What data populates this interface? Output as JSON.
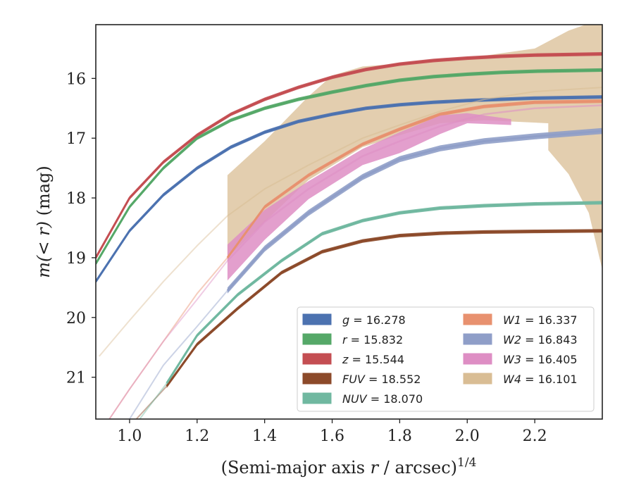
{
  "chart_data": {
    "type": "line",
    "xlabel": "(Semi-major axis r / arcsec)^1/4",
    "xlabel_parts": {
      "prefix": "(Semi-major axis ",
      "var": "r",
      "middle": " / arcsec)",
      "sup": "1/4"
    },
    "ylabel": "m(< r) (mag)",
    "ylabel_parts": {
      "math": "m(< r)",
      "unit": " (mag)"
    },
    "xlim": [
      0.9,
      2.4
    ],
    "ylim": [
      21.7,
      15.1
    ],
    "y_inverted": true,
    "xticks": [
      "1.0",
      "1.2",
      "1.4",
      "1.6",
      "1.8",
      "2.0",
      "2.2"
    ],
    "xtick_values": [
      1.0,
      1.2,
      1.4,
      1.6,
      1.8,
      2.0,
      2.2
    ],
    "yticks": [
      "16",
      "17",
      "18",
      "19",
      "20",
      "21"
    ],
    "ytick_values": [
      16,
      17,
      18,
      19,
      20,
      21
    ],
    "grid": false,
    "legend_position": "lower-right",
    "legend": [
      {
        "label": "g = 16.278",
        "var": "g",
        "value": "16.278",
        "color": "#4c72b0"
      },
      {
        "label": "r = 15.832",
        "var": "r",
        "value": "15.832",
        "color": "#55a868"
      },
      {
        "label": "z = 15.544",
        "var": "z",
        "value": "15.544",
        "color": "#c44e52"
      },
      {
        "label": "FUV = 18.552",
        "var": "FUV",
        "value": "18.552",
        "color": "#8c4a2a"
      },
      {
        "label": "NUV = 18.070",
        "var": "NUV",
        "value": "18.070",
        "color": "#70b8a0"
      },
      {
        "label": "W1 = 16.337",
        "var": "W1",
        "value": "16.337",
        "color": "#e8916f"
      },
      {
        "label": "W2 = 16.843",
        "var": "W2",
        "value": "16.843",
        "color": "#8f9ec8"
      },
      {
        "label": "W3 = 16.405",
        "var": "W3",
        "value": "16.405",
        "color": "#de8ec4"
      },
      {
        "label": "W4 = 16.101",
        "var": "W4",
        "value": "16.101",
        "color": "#d9bd94"
      }
    ],
    "series": [
      {
        "color": "#4c72b0",
        "faint_until": 0.9,
        "width": 3,
        "points": [
          [
            0.9,
            19.4
          ],
          [
            1.0,
            18.55
          ],
          [
            1.1,
            17.95
          ],
          [
            1.2,
            17.5
          ],
          [
            1.3,
            17.15
          ],
          [
            1.4,
            16.9
          ],
          [
            1.5,
            16.72
          ],
          [
            1.6,
            16.6
          ],
          [
            1.7,
            16.5
          ],
          [
            1.8,
            16.44
          ],
          [
            1.9,
            16.4
          ],
          [
            2.0,
            16.37
          ],
          [
            2.1,
            16.35
          ],
          [
            2.2,
            16.33
          ],
          [
            2.3,
            16.32
          ],
          [
            2.4,
            16.31
          ]
        ],
        "band": 0.03
      },
      {
        "color": "#55a868",
        "faint_until": 0.9,
        "width": 3,
        "points": [
          [
            0.9,
            19.1
          ],
          [
            1.0,
            18.15
          ],
          [
            1.1,
            17.5
          ],
          [
            1.2,
            17.0
          ],
          [
            1.3,
            16.7
          ],
          [
            1.4,
            16.5
          ],
          [
            1.5,
            16.35
          ],
          [
            1.6,
            16.23
          ],
          [
            1.7,
            16.12
          ],
          [
            1.8,
            16.03
          ],
          [
            1.9,
            15.97
          ],
          [
            2.0,
            15.93
          ],
          [
            2.1,
            15.9
          ],
          [
            2.2,
            15.88
          ],
          [
            2.3,
            15.87
          ],
          [
            2.4,
            15.86
          ]
        ],
        "band": 0.03
      },
      {
        "color": "#c44e52",
        "faint_until": 0.9,
        "width": 3,
        "points": [
          [
            0.9,
            19.0
          ],
          [
            1.0,
            18.0
          ],
          [
            1.1,
            17.4
          ],
          [
            1.2,
            16.95
          ],
          [
            1.3,
            16.6
          ],
          [
            1.4,
            16.35
          ],
          [
            1.5,
            16.15
          ],
          [
            1.6,
            15.98
          ],
          [
            1.7,
            15.85
          ],
          [
            1.8,
            15.76
          ],
          [
            1.9,
            15.7
          ],
          [
            2.0,
            15.66
          ],
          [
            2.1,
            15.63
          ],
          [
            2.2,
            15.61
          ],
          [
            2.3,
            15.6
          ],
          [
            2.4,
            15.59
          ]
        ],
        "band": 0.03
      },
      {
        "color": "#8c4a2a",
        "faint_until": 1.11,
        "width": 3,
        "points": [
          [
            1.02,
            21.7
          ],
          [
            1.11,
            21.15
          ],
          [
            1.2,
            20.45
          ],
          [
            1.32,
            19.85
          ],
          [
            1.45,
            19.25
          ],
          [
            1.57,
            18.9
          ],
          [
            1.69,
            18.72
          ],
          [
            1.8,
            18.63
          ],
          [
            1.92,
            18.59
          ],
          [
            2.05,
            18.57
          ],
          [
            2.2,
            18.56
          ],
          [
            2.4,
            18.55
          ]
        ],
        "band": 0.03
      },
      {
        "color": "#70b8a0",
        "faint_until": 1.11,
        "width": 3,
        "points": [
          [
            1.03,
            21.7
          ],
          [
            1.11,
            21.1
          ],
          [
            1.2,
            20.3
          ],
          [
            1.32,
            19.62
          ],
          [
            1.45,
            19.05
          ],
          [
            1.57,
            18.6
          ],
          [
            1.69,
            18.38
          ],
          [
            1.8,
            18.25
          ],
          [
            1.92,
            18.17
          ],
          [
            2.05,
            18.13
          ],
          [
            2.2,
            18.1
          ],
          [
            2.4,
            18.08
          ]
        ],
        "band": 0.03
      },
      {
        "color": "#e8916f",
        "faint_until": 1.29,
        "width": 3,
        "points": [
          [
            0.94,
            21.7
          ],
          [
            1.0,
            21.2
          ],
          [
            1.1,
            20.4
          ],
          [
            1.2,
            19.6
          ],
          [
            1.29,
            19.0
          ],
          [
            1.4,
            18.15
          ],
          [
            1.53,
            17.62
          ],
          [
            1.69,
            17.1
          ],
          [
            1.8,
            16.85
          ],
          [
            1.92,
            16.6
          ],
          [
            2.05,
            16.47
          ],
          [
            2.2,
            16.4
          ],
          [
            2.4,
            16.38
          ]
        ],
        "band": 0.03
      },
      {
        "color": "#8f9ec8",
        "faint_until": 1.29,
        "width": 3,
        "points": [
          [
            1.0,
            21.7
          ],
          [
            1.1,
            20.8
          ],
          [
            1.2,
            20.15
          ],
          [
            1.29,
            19.55
          ],
          [
            1.4,
            18.85
          ],
          [
            1.53,
            18.25
          ],
          [
            1.69,
            17.65
          ],
          [
            1.8,
            17.35
          ],
          [
            1.92,
            17.17
          ],
          [
            2.05,
            17.05
          ],
          [
            2.2,
            16.97
          ],
          [
            2.4,
            16.88
          ]
        ],
        "band": 0.05
      },
      {
        "color": "#de8ec4",
        "faint_until": 1.29,
        "width": 2.5,
        "points": [
          [
            0.94,
            21.7
          ],
          [
            1.0,
            21.2
          ],
          [
            1.1,
            20.4
          ],
          [
            1.2,
            19.7
          ],
          [
            1.29,
            19.05
          ],
          [
            1.4,
            18.4
          ],
          [
            1.53,
            17.85
          ],
          [
            1.69,
            17.3
          ],
          [
            1.8,
            17.05
          ],
          [
            1.92,
            16.8
          ],
          [
            2.05,
            16.6
          ],
          [
            2.2,
            16.5
          ],
          [
            2.4,
            16.45
          ]
        ],
        "band_lower": [
          [
            1.29,
            19.38
          ],
          [
            1.4,
            18.7
          ],
          [
            1.53,
            18.02
          ],
          [
            1.69,
            17.45
          ],
          [
            1.8,
            17.25
          ],
          [
            1.92,
            16.93
          ],
          [
            2.0,
            16.75
          ],
          [
            2.13,
            16.78
          ]
        ],
        "band_upper": [
          [
            1.29,
            18.78
          ],
          [
            1.4,
            18.2
          ],
          [
            1.53,
            17.72
          ],
          [
            1.69,
            17.18
          ],
          [
            1.8,
            16.9
          ],
          [
            1.92,
            16.62
          ],
          [
            2.0,
            16.58
          ],
          [
            2.13,
            16.68
          ]
        ]
      },
      {
        "color": "#d9bd94",
        "faint_until": 1.29,
        "width": 2,
        "points": [
          [
            0.91,
            20.65
          ],
          [
            1.0,
            20.05
          ],
          [
            1.1,
            19.4
          ],
          [
            1.2,
            18.8
          ],
          [
            1.29,
            18.3
          ],
          [
            1.4,
            17.85
          ],
          [
            1.53,
            17.45
          ],
          [
            1.69,
            17.0
          ],
          [
            1.8,
            16.78
          ],
          [
            1.92,
            16.55
          ],
          [
            2.05,
            16.35
          ],
          [
            2.2,
            16.22
          ],
          [
            2.4,
            16.15
          ]
        ],
        "band_lower": [
          [
            1.29,
            19.0
          ],
          [
            1.4,
            18.4
          ],
          [
            1.53,
            17.7
          ],
          [
            1.69,
            17.15
          ],
          [
            1.8,
            16.95
          ],
          [
            1.92,
            16.75
          ],
          [
            2.05,
            16.7
          ],
          [
            2.24,
            16.75
          ],
          [
            2.24,
            17.2
          ],
          [
            2.3,
            17.6
          ],
          [
            2.36,
            18.25
          ],
          [
            2.4,
            19.2
          ]
        ],
        "band_upper": [
          [
            1.29,
            17.62
          ],
          [
            1.4,
            17.05
          ],
          [
            1.53,
            16.3
          ],
          [
            1.6,
            15.95
          ],
          [
            1.69,
            15.8
          ],
          [
            1.8,
            15.75
          ],
          [
            1.92,
            15.7
          ],
          [
            2.05,
            15.62
          ],
          [
            2.2,
            15.5
          ],
          [
            2.3,
            15.2
          ],
          [
            2.35,
            15.1
          ],
          [
            2.4,
            15.1
          ]
        ]
      }
    ]
  }
}
